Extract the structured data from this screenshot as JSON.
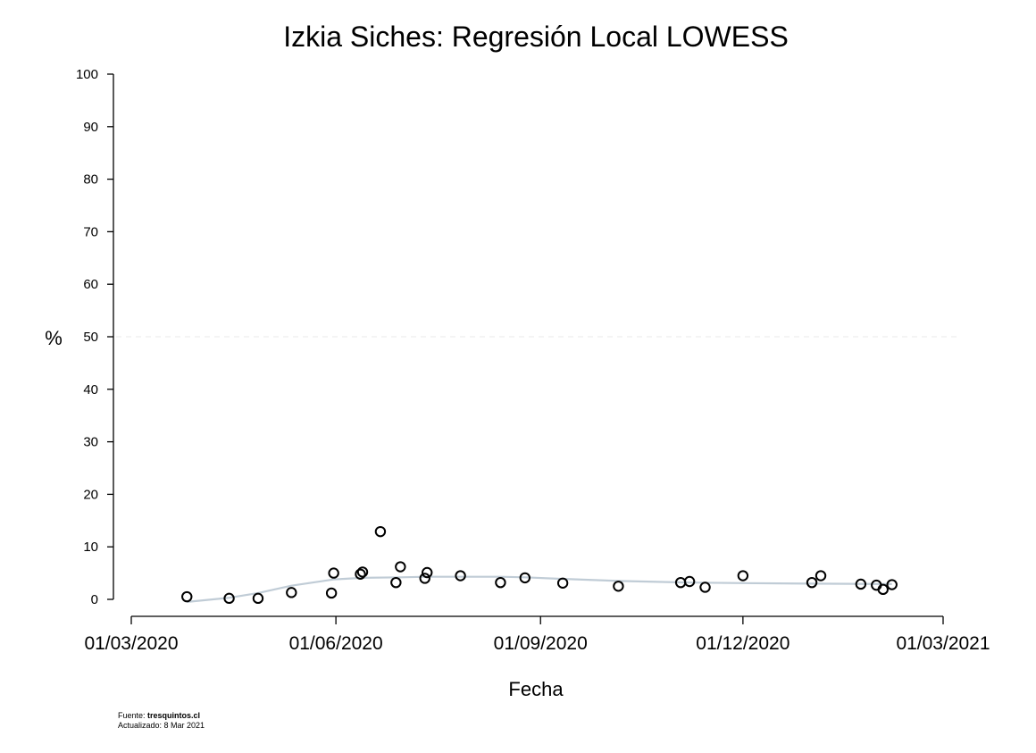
{
  "chart_data": {
    "type": "scatter",
    "title": "Izkia Siches: Regresión Local LOWESS",
    "xlabel": "Fecha",
    "ylabel": "%",
    "ylim": [
      0,
      100
    ],
    "yticks": [
      0,
      10,
      20,
      30,
      40,
      50,
      60,
      70,
      80,
      90,
      100
    ],
    "xlim": [
      "2020-03-01",
      "2021-03-01"
    ],
    "xticks": [
      "2020-03-01",
      "2020-06-01",
      "2020-09-01",
      "2020-12-01",
      "2021-03-01"
    ],
    "xtick_labels": [
      "01/03/2020",
      "01/06/2020",
      "01/09/2020",
      "01/12/2020",
      "01/03/2021"
    ],
    "reference_line": {
      "y": 50,
      "style": "dashed"
    },
    "series": [
      {
        "type": "scatter",
        "marker": "hollow-circle",
        "points": [
          {
            "x": "2020-03-26",
            "y": 0.5
          },
          {
            "x": "2020-04-14",
            "y": 0.2
          },
          {
            "x": "2020-04-27",
            "y": 0.2
          },
          {
            "x": "2020-05-12",
            "y": 1.3
          },
          {
            "x": "2020-05-30",
            "y": 1.2
          },
          {
            "x": "2020-05-31",
            "y": 5.0
          },
          {
            "x": "2020-06-12",
            "y": 4.8
          },
          {
            "x": "2020-06-13",
            "y": 5.2
          },
          {
            "x": "2020-06-21",
            "y": 12.9
          },
          {
            "x": "2020-06-28",
            "y": 3.2
          },
          {
            "x": "2020-06-30",
            "y": 6.2
          },
          {
            "x": "2020-07-11",
            "y": 4.0
          },
          {
            "x": "2020-07-12",
            "y": 5.1
          },
          {
            "x": "2020-07-27",
            "y": 4.5
          },
          {
            "x": "2020-08-14",
            "y": 3.2
          },
          {
            "x": "2020-08-25",
            "y": 4.1
          },
          {
            "x": "2020-09-11",
            "y": 3.1
          },
          {
            "x": "2020-10-06",
            "y": 2.5
          },
          {
            "x": "2020-11-03",
            "y": 3.2
          },
          {
            "x": "2020-11-07",
            "y": 3.4
          },
          {
            "x": "2020-11-14",
            "y": 2.3
          },
          {
            "x": "2020-12-01",
            "y": 4.5
          },
          {
            "x": "2021-01-01",
            "y": 3.2
          },
          {
            "x": "2021-01-05",
            "y": 4.5
          },
          {
            "x": "2021-01-23",
            "y": 2.9
          },
          {
            "x": "2021-01-30",
            "y": 2.7
          },
          {
            "x": "2021-02-02",
            "y": 1.9
          },
          {
            "x": "2021-02-06",
            "y": 2.8
          }
        ]
      },
      {
        "type": "line",
        "color": "#c0ccd6",
        "points": [
          {
            "x": "2020-03-26",
            "y": -0.5
          },
          {
            "x": "2020-04-14",
            "y": 0.3
          },
          {
            "x": "2020-04-27",
            "y": 1.2
          },
          {
            "x": "2020-05-12",
            "y": 2.6
          },
          {
            "x": "2020-05-31",
            "y": 3.8
          },
          {
            "x": "2020-06-13",
            "y": 4.1
          },
          {
            "x": "2020-06-30",
            "y": 4.2
          },
          {
            "x": "2020-07-12",
            "y": 4.3
          },
          {
            "x": "2020-07-27",
            "y": 4.3
          },
          {
            "x": "2020-08-14",
            "y": 4.3
          },
          {
            "x": "2020-08-25",
            "y": 4.2
          },
          {
            "x": "2020-09-11",
            "y": 3.9
          },
          {
            "x": "2020-10-06",
            "y": 3.5
          },
          {
            "x": "2020-11-07",
            "y": 3.2
          },
          {
            "x": "2020-12-01",
            "y": 3.1
          },
          {
            "x": "2021-01-01",
            "y": 3.0
          },
          {
            "x": "2021-02-06",
            "y": 2.9
          }
        ]
      }
    ]
  },
  "footer": {
    "source_prefix": "Fuente: ",
    "source_name": "tresquintos.cl",
    "updated": "Actualizado: 8 Mar 2021"
  }
}
